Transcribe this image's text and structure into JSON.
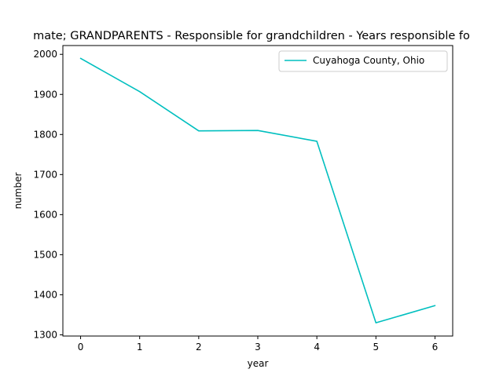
{
  "chart_data": {
    "type": "line",
    "title": "mate; GRANDPARENTS - Responsible for grandchildren - Years responsible fo",
    "xlabel": "year",
    "ylabel": "number",
    "x": [
      0,
      1,
      2,
      3,
      4,
      5,
      6
    ],
    "xticks": [
      "0",
      "1",
      "2",
      "3",
      "4",
      "5",
      "6"
    ],
    "yticks": [
      "1300",
      "1400",
      "1500",
      "1600",
      "1700",
      "1800",
      "1900",
      "2000"
    ],
    "xlim": [
      -0.3,
      6.3
    ],
    "ylim": [
      1297,
      2022
    ],
    "grid": false,
    "legend_position": "top-right",
    "series": [
      {
        "name": "Cuyahoga County, Ohio",
        "color": "#00bfbf",
        "values": [
          1990,
          1907,
          1809,
          1810,
          1783,
          1330,
          1373
        ]
      }
    ]
  }
}
